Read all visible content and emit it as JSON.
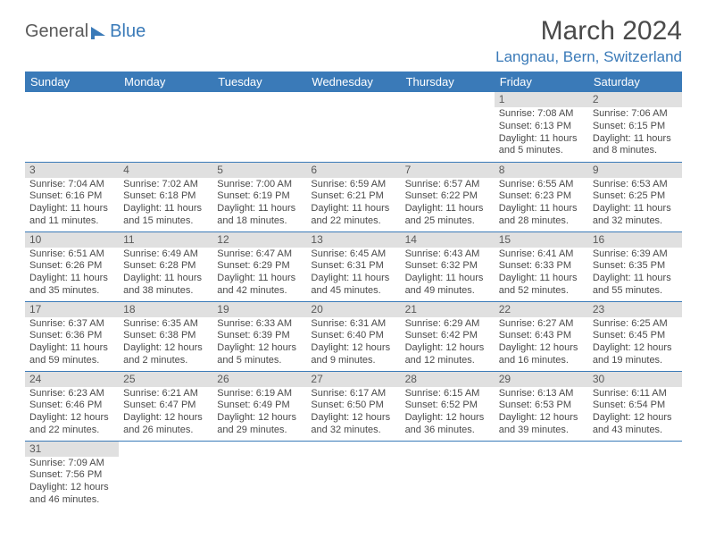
{
  "logo": {
    "text1": "General",
    "text2": "Blue"
  },
  "title": {
    "month": "March 2024",
    "location": "Langnau, Bern, Switzerland"
  },
  "colors": {
    "header_bg": "#3a7ab8",
    "header_text": "#ffffff",
    "daynum_bg": "#e0e0e0",
    "daynum_text": "#5a5a5a",
    "body_text": "#4a4a4a",
    "row_border": "#3a7ab8",
    "location_text": "#3a7ab8"
  },
  "weekdays": [
    "Sunday",
    "Monday",
    "Tuesday",
    "Wednesday",
    "Thursday",
    "Friday",
    "Saturday"
  ],
  "weeks": [
    [
      null,
      null,
      null,
      null,
      null,
      {
        "n": "1",
        "sr": "Sunrise: 7:08 AM",
        "ss": "Sunset: 6:13 PM",
        "dl": "Daylight: 11 hours and 5 minutes."
      },
      {
        "n": "2",
        "sr": "Sunrise: 7:06 AM",
        "ss": "Sunset: 6:15 PM",
        "dl": "Daylight: 11 hours and 8 minutes."
      }
    ],
    [
      {
        "n": "3",
        "sr": "Sunrise: 7:04 AM",
        "ss": "Sunset: 6:16 PM",
        "dl": "Daylight: 11 hours and 11 minutes."
      },
      {
        "n": "4",
        "sr": "Sunrise: 7:02 AM",
        "ss": "Sunset: 6:18 PM",
        "dl": "Daylight: 11 hours and 15 minutes."
      },
      {
        "n": "5",
        "sr": "Sunrise: 7:00 AM",
        "ss": "Sunset: 6:19 PM",
        "dl": "Daylight: 11 hours and 18 minutes."
      },
      {
        "n": "6",
        "sr": "Sunrise: 6:59 AM",
        "ss": "Sunset: 6:21 PM",
        "dl": "Daylight: 11 hours and 22 minutes."
      },
      {
        "n": "7",
        "sr": "Sunrise: 6:57 AM",
        "ss": "Sunset: 6:22 PM",
        "dl": "Daylight: 11 hours and 25 minutes."
      },
      {
        "n": "8",
        "sr": "Sunrise: 6:55 AM",
        "ss": "Sunset: 6:23 PM",
        "dl": "Daylight: 11 hours and 28 minutes."
      },
      {
        "n": "9",
        "sr": "Sunrise: 6:53 AM",
        "ss": "Sunset: 6:25 PM",
        "dl": "Daylight: 11 hours and 32 minutes."
      }
    ],
    [
      {
        "n": "10",
        "sr": "Sunrise: 6:51 AM",
        "ss": "Sunset: 6:26 PM",
        "dl": "Daylight: 11 hours and 35 minutes."
      },
      {
        "n": "11",
        "sr": "Sunrise: 6:49 AM",
        "ss": "Sunset: 6:28 PM",
        "dl": "Daylight: 11 hours and 38 minutes."
      },
      {
        "n": "12",
        "sr": "Sunrise: 6:47 AM",
        "ss": "Sunset: 6:29 PM",
        "dl": "Daylight: 11 hours and 42 minutes."
      },
      {
        "n": "13",
        "sr": "Sunrise: 6:45 AM",
        "ss": "Sunset: 6:31 PM",
        "dl": "Daylight: 11 hours and 45 minutes."
      },
      {
        "n": "14",
        "sr": "Sunrise: 6:43 AM",
        "ss": "Sunset: 6:32 PM",
        "dl": "Daylight: 11 hours and 49 minutes."
      },
      {
        "n": "15",
        "sr": "Sunrise: 6:41 AM",
        "ss": "Sunset: 6:33 PM",
        "dl": "Daylight: 11 hours and 52 minutes."
      },
      {
        "n": "16",
        "sr": "Sunrise: 6:39 AM",
        "ss": "Sunset: 6:35 PM",
        "dl": "Daylight: 11 hours and 55 minutes."
      }
    ],
    [
      {
        "n": "17",
        "sr": "Sunrise: 6:37 AM",
        "ss": "Sunset: 6:36 PM",
        "dl": "Daylight: 11 hours and 59 minutes."
      },
      {
        "n": "18",
        "sr": "Sunrise: 6:35 AM",
        "ss": "Sunset: 6:38 PM",
        "dl": "Daylight: 12 hours and 2 minutes."
      },
      {
        "n": "19",
        "sr": "Sunrise: 6:33 AM",
        "ss": "Sunset: 6:39 PM",
        "dl": "Daylight: 12 hours and 5 minutes."
      },
      {
        "n": "20",
        "sr": "Sunrise: 6:31 AM",
        "ss": "Sunset: 6:40 PM",
        "dl": "Daylight: 12 hours and 9 minutes."
      },
      {
        "n": "21",
        "sr": "Sunrise: 6:29 AM",
        "ss": "Sunset: 6:42 PM",
        "dl": "Daylight: 12 hours and 12 minutes."
      },
      {
        "n": "22",
        "sr": "Sunrise: 6:27 AM",
        "ss": "Sunset: 6:43 PM",
        "dl": "Daylight: 12 hours and 16 minutes."
      },
      {
        "n": "23",
        "sr": "Sunrise: 6:25 AM",
        "ss": "Sunset: 6:45 PM",
        "dl": "Daylight: 12 hours and 19 minutes."
      }
    ],
    [
      {
        "n": "24",
        "sr": "Sunrise: 6:23 AM",
        "ss": "Sunset: 6:46 PM",
        "dl": "Daylight: 12 hours and 22 minutes."
      },
      {
        "n": "25",
        "sr": "Sunrise: 6:21 AM",
        "ss": "Sunset: 6:47 PM",
        "dl": "Daylight: 12 hours and 26 minutes."
      },
      {
        "n": "26",
        "sr": "Sunrise: 6:19 AM",
        "ss": "Sunset: 6:49 PM",
        "dl": "Daylight: 12 hours and 29 minutes."
      },
      {
        "n": "27",
        "sr": "Sunrise: 6:17 AM",
        "ss": "Sunset: 6:50 PM",
        "dl": "Daylight: 12 hours and 32 minutes."
      },
      {
        "n": "28",
        "sr": "Sunrise: 6:15 AM",
        "ss": "Sunset: 6:52 PM",
        "dl": "Daylight: 12 hours and 36 minutes."
      },
      {
        "n": "29",
        "sr": "Sunrise: 6:13 AM",
        "ss": "Sunset: 6:53 PM",
        "dl": "Daylight: 12 hours and 39 minutes."
      },
      {
        "n": "30",
        "sr": "Sunrise: 6:11 AM",
        "ss": "Sunset: 6:54 PM",
        "dl": "Daylight: 12 hours and 43 minutes."
      }
    ],
    [
      {
        "n": "31",
        "sr": "Sunrise: 7:09 AM",
        "ss": "Sunset: 7:56 PM",
        "dl": "Daylight: 12 hours and 46 minutes."
      },
      null,
      null,
      null,
      null,
      null,
      null
    ]
  ]
}
